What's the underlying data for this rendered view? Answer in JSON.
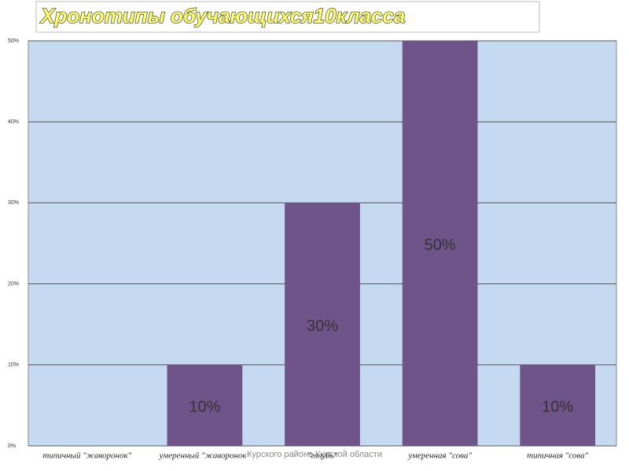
{
  "chart_data": {
    "type": "bar",
    "title": "Хронотипы обучающихся10класса",
    "categories": [
      "типичный \"жаворонок\"",
      "умеренный \"жаворонок\"",
      "\"голубь\"",
      "умеренная \"сова\"",
      "типичная \"сова\""
    ],
    "values": [
      0,
      10,
      30,
      50,
      10
    ],
    "value_labels": [
      null,
      "10%",
      "30%",
      "50%",
      "10%"
    ],
    "color": "#6f548a",
    "ylim": [
      0,
      50
    ],
    "yticks": [
      {
        "value": 0,
        "label": "0%"
      },
      {
        "value": 10,
        "label": "10%"
      },
      {
        "value": 20,
        "label": "20%"
      },
      {
        "value": 30,
        "label": "30%"
      },
      {
        "value": 40,
        "label": "40%"
      },
      {
        "value": 50,
        "label": "50%"
      }
    ],
    "grid": true,
    "footnote": "Курского района Курской области"
  }
}
